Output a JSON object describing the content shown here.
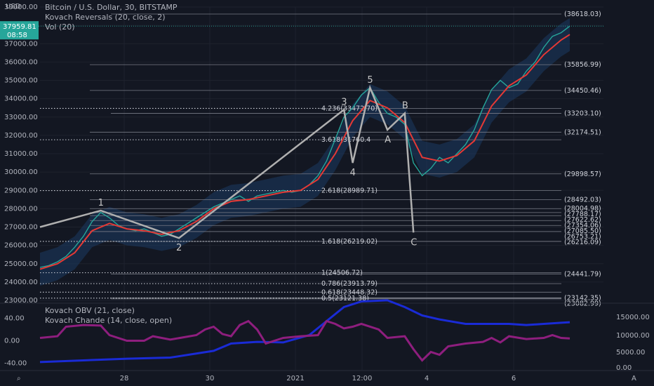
{
  "header": {
    "symbol": "Bitcoin / U.S. Dollar, 30, BITSTAMP",
    "indicator1": "Kovach Reversals (20, close, 2)",
    "indicator2": "Vol (20)",
    "indicator3": "Kovach OBV (21, close)",
    "indicator4": "Kovach Chande (14, close, open)",
    "currency": "USD"
  },
  "colors": {
    "background": "#131722",
    "grid": "#1e222d",
    "price": "#26a69a",
    "ma": "#e53935",
    "band_fill": "#1b3a63",
    "zigzag": "#b0b0b0",
    "obv": "#1a2bd6",
    "chande": "#8e1e7e",
    "down_triangle": "#d32f2f",
    "up_triangle": "#26a69a",
    "volume_line": "#e07a5f"
  },
  "corner_icons": {
    "left": "tv-logo-icon",
    "right": "auto-scale-icon"
  },
  "chart_data": {
    "type": "line",
    "price_axis": {
      "ticks": [
        "39000.00",
        "38000.00",
        "37000.00",
        "36000.00",
        "35000.00",
        "34000.00",
        "33000.00",
        "32000.00",
        "31000.00",
        "30000.00",
        "29000.00",
        "28000.00",
        "27000.00",
        "26000.00",
        "25000.00",
        "24000.00",
        "23000.00"
      ],
      "ylim": [
        23000,
        39000
      ],
      "last_price": "37959.81",
      "countdown": "08:58"
    },
    "x_axis": {
      "ticks": [
        "28",
        "30",
        "2021",
        "12:00",
        "4",
        "6"
      ]
    },
    "price_series": [
      [
        0,
        24800
      ],
      [
        2,
        24900
      ],
      [
        4,
        25100
      ],
      [
        6,
        25400
      ],
      [
        8,
        25900
      ],
      [
        10,
        26500
      ],
      [
        12,
        27300
      ],
      [
        14,
        27800
      ],
      [
        16,
        27500
      ],
      [
        18,
        27100
      ],
      [
        20,
        26900
      ],
      [
        22,
        26800
      ],
      [
        24,
        26900
      ],
      [
        26,
        26700
      ],
      [
        28,
        26500
      ],
      [
        30,
        26600
      ],
      [
        32,
        26900
      ],
      [
        34,
        27200
      ],
      [
        36,
        27500
      ],
      [
        38,
        27800
      ],
      [
        40,
        28100
      ],
      [
        42,
        28300
      ],
      [
        44,
        28500
      ],
      [
        46,
        28700
      ],
      [
        48,
        28400
      ],
      [
        50,
        28700
      ],
      [
        52,
        28800
      ],
      [
        54,
        28900
      ],
      [
        56,
        29000
      ],
      [
        58,
        28900
      ],
      [
        60,
        29000
      ],
      [
        62,
        29300
      ],
      [
        64,
        29800
      ],
      [
        66,
        30600
      ],
      [
        68,
        31800
      ],
      [
        70,
        33000
      ],
      [
        72,
        33500
      ],
      [
        74,
        34200
      ],
      [
        76,
        34600
      ],
      [
        78,
        33800
      ],
      [
        80,
        33200
      ],
      [
        82,
        33000
      ],
      [
        84,
        32600
      ],
      [
        86,
        30500
      ],
      [
        88,
        29800
      ],
      [
        90,
        30200
      ],
      [
        92,
        30800
      ],
      [
        94,
        30500
      ],
      [
        96,
        31000
      ],
      [
        98,
        31500
      ],
      [
        100,
        32300
      ],
      [
        102,
        33500
      ],
      [
        104,
        34500
      ],
      [
        106,
        35000
      ],
      [
        108,
        34600
      ],
      [
        110,
        34800
      ],
      [
        112,
        35500
      ],
      [
        114,
        36000
      ],
      [
        116,
        36800
      ],
      [
        118,
        37400
      ],
      [
        120,
        37600
      ],
      [
        122,
        37960
      ]
    ],
    "ma_series": [
      [
        0,
        24700
      ],
      [
        4,
        25000
      ],
      [
        8,
        25600
      ],
      [
        12,
        26800
      ],
      [
        16,
        27200
      ],
      [
        20,
        26900
      ],
      [
        24,
        26800
      ],
      [
        28,
        26600
      ],
      [
        32,
        26800
      ],
      [
        36,
        27300
      ],
      [
        40,
        28000
      ],
      [
        44,
        28400
      ],
      [
        48,
        28500
      ],
      [
        52,
        28700
      ],
      [
        56,
        28900
      ],
      [
        60,
        29000
      ],
      [
        64,
        29600
      ],
      [
        68,
        31000
      ],
      [
        72,
        32800
      ],
      [
        76,
        33900
      ],
      [
        80,
        33500
      ],
      [
        84,
        32700
      ],
      [
        88,
        30800
      ],
      [
        92,
        30600
      ],
      [
        96,
        30900
      ],
      [
        100,
        31700
      ],
      [
        104,
        33600
      ],
      [
        108,
        34700
      ],
      [
        112,
        35300
      ],
      [
        116,
        36400
      ],
      [
        120,
        37200
      ],
      [
        122,
        37500
      ]
    ],
    "horizontal_levels": [
      {
        "label": "(38618.03)",
        "value": 38618.03
      },
      {
        "label": "(35856.99)",
        "value": 35856.99
      },
      {
        "label": "(34450.46)",
        "value": 34450.46
      },
      {
        "label": "(33203.10)",
        "value": 33203.1
      },
      {
        "label": "(32174.51)",
        "value": 32174.51
      },
      {
        "label": "(29898.57)",
        "value": 29898.57
      },
      {
        "label": "(28492.03)",
        "value": 28492.03
      },
      {
        "label": "(28004.98)",
        "value": 28004.98
      },
      {
        "label": "(27788.17)",
        "value": 27788.17
      },
      {
        "label": "(27622.62)",
        "value": 27622.62
      },
      {
        "label": "(27354.06)",
        "value": 27354.06
      },
      {
        "label": "(27085.50)",
        "value": 27085.5
      },
      {
        "label": "(26753.21)",
        "value": 26753.21
      },
      {
        "label": "(26216.09)",
        "value": 26216.09
      },
      {
        "label": "(24441.79)",
        "value": 24441.79
      },
      {
        "label": "(23142.35)",
        "value": 23142.35
      },
      {
        "label": "(23082.99)",
        "value": 23082.99
      }
    ],
    "fib_levels": [
      {
        "label": "4.236(33472.70)",
        "value": 33472.7
      },
      {
        "label": "3.618(31760.4",
        "value": 31760.4
      },
      {
        "label": "2.618(28989.71)",
        "value": 28989.71
      },
      {
        "label": "1.618(26219.02)",
        "value": 26219.02
      },
      {
        "label": "1(24506.72)",
        "value": 24506.72
      },
      {
        "label": "0.786(23913.79)",
        "value": 23913.79
      },
      {
        "label": "0.618(23448.32)",
        "value": 23448.32
      },
      {
        "label": "0.5(23121.38)",
        "value": 23121.38
      }
    ],
    "wave_points": [
      {
        "label": "",
        "x": 0,
        "y": 27000
      },
      {
        "label": "1",
        "x": 14,
        "y": 27900
      },
      {
        "label": "2",
        "x": 32,
        "y": 26400
      },
      {
        "label": "3",
        "x": 70,
        "y": 33400
      },
      {
        "label": "4",
        "x": 72,
        "y": 30500
      },
      {
        "label": "5",
        "x": 76,
        "y": 34600
      },
      {
        "label": "A",
        "x": 80,
        "y": 32300
      },
      {
        "label": "B",
        "x": 84,
        "y": 33200
      },
      {
        "label": "C",
        "x": 86,
        "y": 26700
      }
    ],
    "oscillator_axis_left": {
      "ticks": [
        "40.00",
        "0.00",
        "-40.00"
      ]
    },
    "oscillator_axis_right": {
      "ticks": [
        "15000.00",
        "10000.00",
        "5000.00",
        "0.00"
      ]
    },
    "obv_series": [
      [
        0,
        -38
      ],
      [
        10,
        -35
      ],
      [
        20,
        -32
      ],
      [
        30,
        -30
      ],
      [
        40,
        -18
      ],
      [
        44,
        -5
      ],
      [
        50,
        -2
      ],
      [
        56,
        -3
      ],
      [
        62,
        10
      ],
      [
        66,
        35
      ],
      [
        70,
        60
      ],
      [
        74,
        70
      ],
      [
        80,
        72
      ],
      [
        84,
        60
      ],
      [
        88,
        45
      ],
      [
        92,
        38
      ],
      [
        98,
        30
      ],
      [
        104,
        30
      ],
      [
        108,
        30
      ],
      [
        112,
        28
      ],
      [
        116,
        30
      ],
      [
        120,
        32
      ],
      [
        122,
        33
      ]
    ],
    "chande_series": [
      [
        0,
        5
      ],
      [
        4,
        8
      ],
      [
        6,
        25
      ],
      [
        10,
        28
      ],
      [
        14,
        27
      ],
      [
        16,
        10
      ],
      [
        20,
        0
      ],
      [
        24,
        0
      ],
      [
        26,
        8
      ],
      [
        30,
        2
      ],
      [
        36,
        10
      ],
      [
        38,
        20
      ],
      [
        40,
        25
      ],
      [
        42,
        12
      ],
      [
        44,
        8
      ],
      [
        46,
        28
      ],
      [
        48,
        35
      ],
      [
        50,
        20
      ],
      [
        52,
        -5
      ],
      [
        56,
        5
      ],
      [
        60,
        8
      ],
      [
        64,
        10
      ],
      [
        66,
        35
      ],
      [
        68,
        30
      ],
      [
        70,
        22
      ],
      [
        72,
        25
      ],
      [
        74,
        30
      ],
      [
        78,
        20
      ],
      [
        80,
        5
      ],
      [
        84,
        8
      ],
      [
        86,
        -15
      ],
      [
        88,
        -35
      ],
      [
        90,
        -20
      ],
      [
        92,
        -25
      ],
      [
        94,
        -10
      ],
      [
        98,
        -5
      ],
      [
        102,
        -2
      ],
      [
        104,
        5
      ],
      [
        106,
        -3
      ],
      [
        108,
        8
      ],
      [
        112,
        3
      ],
      [
        116,
        5
      ],
      [
        118,
        10
      ],
      [
        120,
        5
      ],
      [
        122,
        4
      ]
    ]
  }
}
